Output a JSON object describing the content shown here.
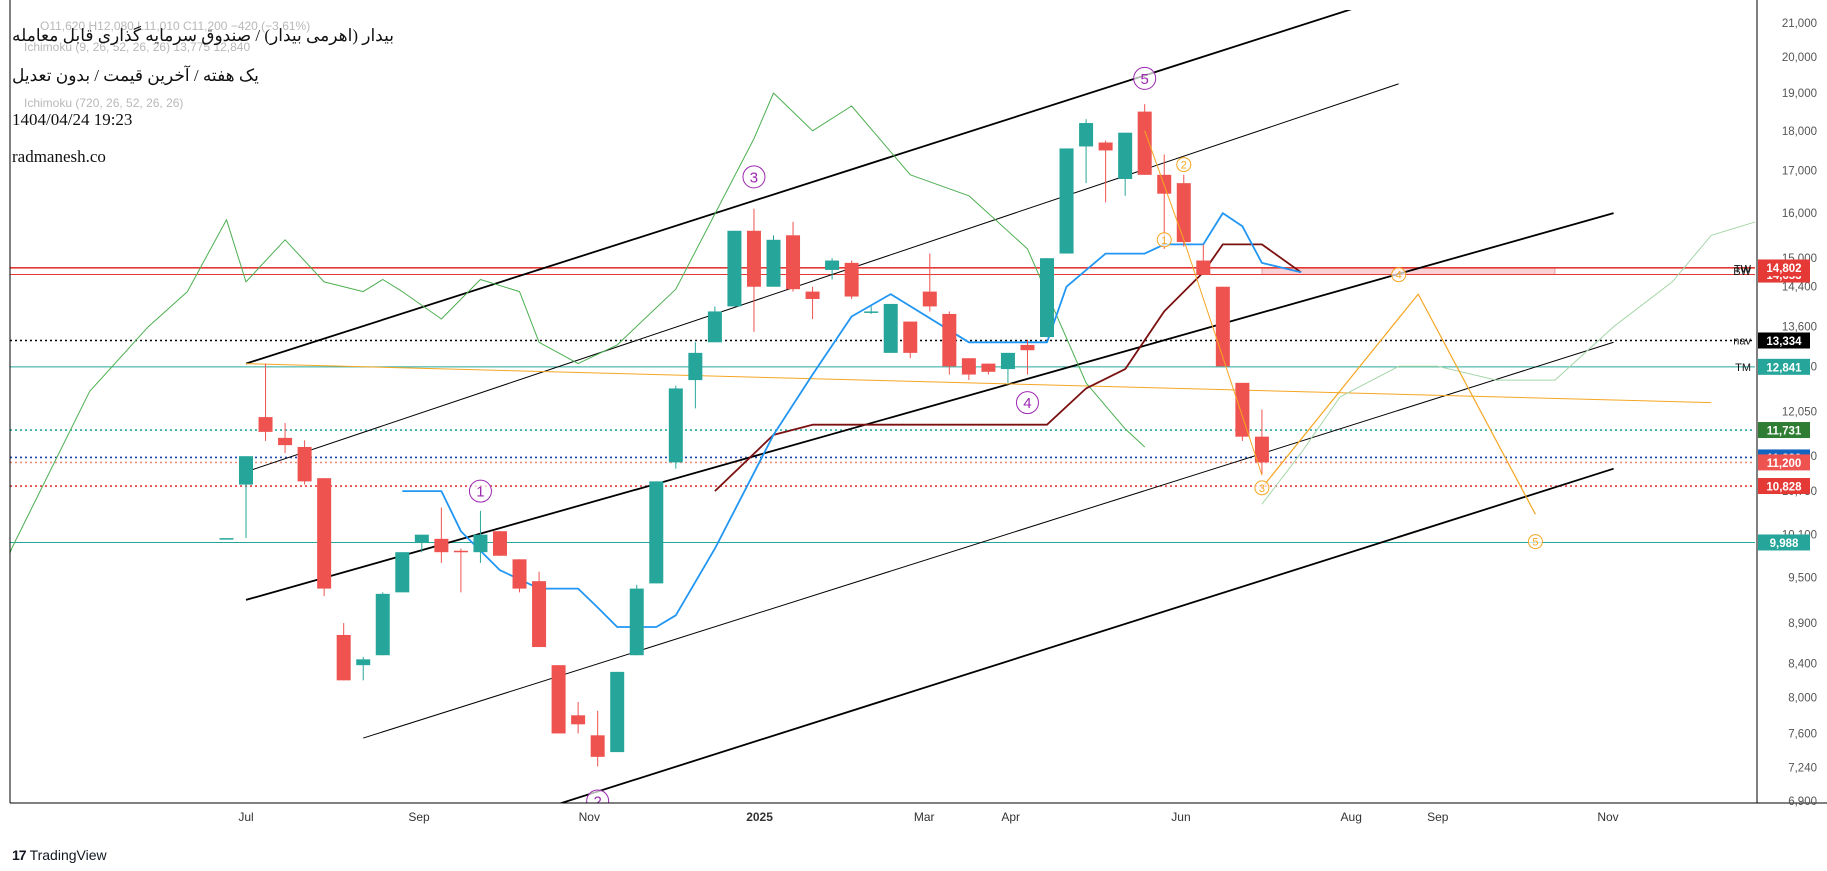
{
  "header": {
    "title": "بیدار (اهرمی بیدار) / صندوق سرمایه گذاری قابل معامله",
    "subtitle": "یک هفته / آخرین قیمت / بدون تعدیل",
    "datetime": "1404/04/24 19:23",
    "website": "radmanesh.co",
    "ghost_line1": "O11,620 H12,080 L11,010 C11,200 −420 (−3.61%)",
    "ghost_line2": "Ichimoku (9, 26, 52, 26, 26) 13,775 12,840",
    "ghost_line3": "Ichimoku (720, 26, 52, 26, 26)"
  },
  "branding": {
    "logo_text": "TradingView",
    "logo_icon": "tradingview-logo-icon"
  },
  "chart_data": {
    "type": "candlestick",
    "timeframe": "1W",
    "colors": {
      "up": "#26a69a",
      "down": "#ef5350",
      "tenkan": "#2196f3",
      "kijun": "#7b1010",
      "lagging": "#4caf50",
      "channel": "#000000",
      "wave": "#f5a623",
      "waveLabel": "#9c27b0"
    },
    "x_axis": {
      "ticks": [
        {
          "label": "Jul",
          "date": "2024-07-01"
        },
        {
          "label": "Sep",
          "date": "2024-09-01"
        },
        {
          "label": "Nov",
          "date": "2024-11-01"
        },
        {
          "label": "2025",
          "date": "2025-01-01"
        },
        {
          "label": "Mar",
          "date": "2025-03-01"
        },
        {
          "label": "Apr",
          "date": "2025-04-01"
        },
        {
          "label": "Jun",
          "date": "2025-06-01"
        },
        {
          "label": "Aug",
          "date": "2025-08-01"
        },
        {
          "label": "Sep",
          "date": "2025-09-01"
        },
        {
          "label": "Nov",
          "date": "2025-11-01"
        }
      ]
    },
    "y_axis": {
      "scale": "log",
      "range": [
        6700,
        21400
      ],
      "ticks": [
        21000,
        20000,
        19000,
        18000,
        17000,
        16000,
        15000,
        14400,
        13600,
        12850,
        12050,
        11300,
        10750,
        10100,
        9500,
        8900,
        8400,
        8000,
        7600,
        7240,
        6900
      ],
      "tick_labels": [
        "21,000",
        "20,000",
        "19,000",
        "18,000",
        "17,000",
        "16,000",
        "15,000",
        "14,400",
        "13,600",
        "12,850",
        "12,050",
        "11,300",
        "10,750",
        "10,100",
        "9,500",
        "8,900",
        "8,400",
        "8,000",
        "7,600",
        "7,240",
        "6,900"
      ]
    },
    "candles": [
      {
        "date": "2024-06-24",
        "o": 10050,
        "h": 10050,
        "l": 10050,
        "c": 10050
      },
      {
        "date": "2024-07-01",
        "o": 10850,
        "h": 11300,
        "l": 10050,
        "c": 11300
      },
      {
        "date": "2024-07-08",
        "o": 11950,
        "h": 12900,
        "l": 11550,
        "c": 11700
      },
      {
        "date": "2024-07-15",
        "o": 11600,
        "h": 11850,
        "l": 11350,
        "c": 11480
      },
      {
        "date": "2024-07-22",
        "o": 11450,
        "h": 11560,
        "l": 10850,
        "c": 10900
      },
      {
        "date": "2024-07-29",
        "o": 10950,
        "h": 10950,
        "l": 9250,
        "c": 9350
      },
      {
        "date": "2024-08-05",
        "o": 8750,
        "h": 8900,
        "l": 8200,
        "c": 8200
      },
      {
        "date": "2024-08-12",
        "o": 8380,
        "h": 8480,
        "l": 8200,
        "c": 8450
      },
      {
        "date": "2024-08-19",
        "o": 8500,
        "h": 9300,
        "l": 8500,
        "c": 9280
      },
      {
        "date": "2024-08-26",
        "o": 9300,
        "h": 9850,
        "l": 9300,
        "c": 9850
      },
      {
        "date": "2024-09-02",
        "o": 9980,
        "h": 10100,
        "l": 9850,
        "c": 10100
      },
      {
        "date": "2024-09-09",
        "o": 10040,
        "h": 10500,
        "l": 9700,
        "c": 9850
      },
      {
        "date": "2024-09-16",
        "o": 9870,
        "h": 9900,
        "l": 9300,
        "c": 9850
      },
      {
        "date": "2024-09-23",
        "o": 9850,
        "h": 10450,
        "l": 9700,
        "c": 10100
      },
      {
        "date": "2024-09-30",
        "o": 10150,
        "h": 10150,
        "l": 9800,
        "c": 9800
      },
      {
        "date": "2024-10-07",
        "o": 9750,
        "h": 9750,
        "l": 9300,
        "c": 9350
      },
      {
        "date": "2024-10-14",
        "o": 9450,
        "h": 9580,
        "l": 8600,
        "c": 8600
      },
      {
        "date": "2024-10-21",
        "o": 8380,
        "h": 8380,
        "l": 7600,
        "c": 7600
      },
      {
        "date": "2024-10-28",
        "o": 7800,
        "h": 7950,
        "l": 7600,
        "c": 7700
      },
      {
        "date": "2024-11-04",
        "o": 7580,
        "h": 7850,
        "l": 7250,
        "c": 7350
      },
      {
        "date": "2024-11-11",
        "o": 7400,
        "h": 8300,
        "l": 7400,
        "c": 8300
      },
      {
        "date": "2024-11-18",
        "o": 8500,
        "h": 9400,
        "l": 8500,
        "c": 9350
      },
      {
        "date": "2024-11-25",
        "o": 9420,
        "h": 10900,
        "l": 9420,
        "c": 10900
      },
      {
        "date": "2024-12-02",
        "o": 11200,
        "h": 12500,
        "l": 11100,
        "c": 12450
      },
      {
        "date": "2024-12-09",
        "o": 12600,
        "h": 13300,
        "l": 12100,
        "c": 13100
      },
      {
        "date": "2024-12-16",
        "o": 13300,
        "h": 14000,
        "l": 13300,
        "c": 13900
      },
      {
        "date": "2024-12-23",
        "o": 14000,
        "h": 15600,
        "l": 14000,
        "c": 15600
      },
      {
        "date": "2024-12-30",
        "o": 15600,
        "h": 16100,
        "l": 13500,
        "c": 14400
      },
      {
        "date": "2025-01-06",
        "o": 14400,
        "h": 15500,
        "l": 14400,
        "c": 15400
      },
      {
        "date": "2025-01-13",
        "o": 15500,
        "h": 15800,
        "l": 14300,
        "c": 14350
      },
      {
        "date": "2025-01-20",
        "o": 14300,
        "h": 14400,
        "l": 13750,
        "c": 14150
      },
      {
        "date": "2025-01-27",
        "o": 14750,
        "h": 15000,
        "l": 14550,
        "c": 14950
      },
      {
        "date": "2025-02-03",
        "o": 14900,
        "h": 14950,
        "l": 14150,
        "c": 14200
      },
      {
        "date": "2025-02-10",
        "o": 13900,
        "h": 14000,
        "l": 13850,
        "c": 13900
      },
      {
        "date": "2025-02-17",
        "o": 13100,
        "h": 14050,
        "l": 13100,
        "c": 14050
      },
      {
        "date": "2025-02-24",
        "o": 13700,
        "h": 13700,
        "l": 13000,
        "c": 13100
      },
      {
        "date": "2025-03-03",
        "o": 14300,
        "h": 15100,
        "l": 13900,
        "c": 14000
      },
      {
        "date": "2025-03-10",
        "o": 13850,
        "h": 13900,
        "l": 12700,
        "c": 12850
      },
      {
        "date": "2025-03-17",
        "o": 13000,
        "h": 13000,
        "l": 12600,
        "c": 12700
      },
      {
        "date": "2025-03-24",
        "o": 12900,
        "h": 12900,
        "l": 12700,
        "c": 12750
      },
      {
        "date": "2025-03-31",
        "o": 12800,
        "h": 13100,
        "l": 12550,
        "c": 13100
      },
      {
        "date": "2025-04-07",
        "o": 13250,
        "h": 13350,
        "l": 12700,
        "c": 13150
      },
      {
        "date": "2025-04-14",
        "o": 13400,
        "h": 15000,
        "l": 13400,
        "c": 15000
      },
      {
        "date": "2025-04-21",
        "o": 15100,
        "h": 17550,
        "l": 15100,
        "c": 17550
      },
      {
        "date": "2025-04-28",
        "o": 17600,
        "h": 18300,
        "l": 16700,
        "c": 18200
      },
      {
        "date": "2025-05-05",
        "o": 17700,
        "h": 17750,
        "l": 16250,
        "c": 17500
      },
      {
        "date": "2025-05-12",
        "o": 16800,
        "h": 17950,
        "l": 16400,
        "c": 17950
      },
      {
        "date": "2025-05-19",
        "o": 18500,
        "h": 18700,
        "l": 16900,
        "c": 16900
      },
      {
        "date": "2025-05-26",
        "o": 16900,
        "h": 17400,
        "l": 15200,
        "c": 16450
      },
      {
        "date": "2025-06-02",
        "o": 16700,
        "h": 16900,
        "l": 15250,
        "c": 15350
      },
      {
        "date": "2025-06-09",
        "o": 14950,
        "h": 15300,
        "l": 14650,
        "c": 14650
      },
      {
        "date": "2025-06-16",
        "o": 14400,
        "h": 14400,
        "l": 12850,
        "c": 12850
      },
      {
        "date": "2025-06-23",
        "o": 12550,
        "h": 12550,
        "l": 11550,
        "c": 11620
      },
      {
        "date": "2025-06-30",
        "o": 11620,
        "h": 12080,
        "l": 11010,
        "c": 11200
      }
    ],
    "tenkan": [
      {
        "date": "2024-08-26",
        "v": 10750
      },
      {
        "date": "2024-09-09",
        "v": 10750
      },
      {
        "date": "2024-09-16",
        "v": 10150
      },
      {
        "date": "2024-09-30",
        "v": 9600
      },
      {
        "date": "2024-10-14",
        "v": 9350
      },
      {
        "date": "2024-10-28",
        "v": 9350
      },
      {
        "date": "2024-11-04",
        "v": 9100
      },
      {
        "date": "2024-11-11",
        "v": 8850
      },
      {
        "date": "2024-11-25",
        "v": 8850
      },
      {
        "date": "2024-12-02",
        "v": 9000
      },
      {
        "date": "2024-12-16",
        "v": 9900
      },
      {
        "date": "2025-01-06",
        "v": 11650
      },
      {
        "date": "2025-01-20",
        "v": 12700
      },
      {
        "date": "2025-02-03",
        "v": 13800
      },
      {
        "date": "2025-02-17",
        "v": 14250
      },
      {
        "date": "2025-03-17",
        "v": 13300
      },
      {
        "date": "2025-03-24",
        "v": 13300
      },
      {
        "date": "2025-04-14",
        "v": 13300
      },
      {
        "date": "2025-04-21",
        "v": 14400
      },
      {
        "date": "2025-05-05",
        "v": 15100
      },
      {
        "date": "2025-05-19",
        "v": 15100
      },
      {
        "date": "2025-05-26",
        "v": 15300
      },
      {
        "date": "2025-06-09",
        "v": 15300
      },
      {
        "date": "2025-06-16",
        "v": 16000
      },
      {
        "date": "2025-06-23",
        "v": 15700
      },
      {
        "date": "2025-06-30",
        "v": 14900
      },
      {
        "date": "2025-07-14",
        "v": 14700
      }
    ],
    "kijun": [
      {
        "date": "2024-12-16",
        "v": 10750
      },
      {
        "date": "2025-01-06",
        "v": 11650
      },
      {
        "date": "2025-01-20",
        "v": 11820
      },
      {
        "date": "2025-02-17",
        "v": 11820
      },
      {
        "date": "2025-04-07",
        "v": 11820
      },
      {
        "date": "2025-04-14",
        "v": 11820
      },
      {
        "date": "2025-04-28",
        "v": 12450
      },
      {
        "date": "2025-05-12",
        "v": 12800
      },
      {
        "date": "2025-05-26",
        "v": 13900
      },
      {
        "date": "2025-06-09",
        "v": 14700
      },
      {
        "date": "2025-06-16",
        "v": 15300
      },
      {
        "date": "2025-06-30",
        "v": 15300
      },
      {
        "date": "2025-07-14",
        "v": 14700
      }
    ],
    "lagging_span": [
      {
        "date": "2024-01-22",
        "v": 9250
      },
      {
        "date": "2024-02-19",
        "v": 7600
      },
      {
        "date": "2024-03-04",
        "v": 7650
      },
      {
        "date": "2024-03-11",
        "v": 7320
      },
      {
        "date": "2024-04-08",
        "v": 9900
      },
      {
        "date": "2024-05-06",
        "v": 12400
      },
      {
        "date": "2024-05-27",
        "v": 13600
      },
      {
        "date": "2024-06-10",
        "v": 14300
      },
      {
        "date": "2024-06-24",
        "v": 15850
      },
      {
        "date": "2024-07-01",
        "v": 14500
      },
      {
        "date": "2024-07-15",
        "v": 15400
      },
      {
        "date": "2024-07-29",
        "v": 14500
      },
      {
        "date": "2024-08-12",
        "v": 14300
      },
      {
        "date": "2024-08-19",
        "v": 14550
      },
      {
        "date": "2024-08-26",
        "v": 14300
      },
      {
        "date": "2024-09-09",
        "v": 13750
      },
      {
        "date": "2024-09-23",
        "v": 14550
      },
      {
        "date": "2024-10-07",
        "v": 14300
      },
      {
        "date": "2024-10-14",
        "v": 13300
      },
      {
        "date": "2024-10-28",
        "v": 12900
      },
      {
        "date": "2024-11-11",
        "v": 13250
      },
      {
        "date": "2024-12-02",
        "v": 14350
      },
      {
        "date": "2024-12-30",
        "v": 17800
      },
      {
        "date": "2025-01-06",
        "v": 19000
      },
      {
        "date": "2025-01-20",
        "v": 18000
      },
      {
        "date": "2025-02-03",
        "v": 18650
      },
      {
        "date": "2025-02-24",
        "v": 16900
      },
      {
        "date": "2025-03-17",
        "v": 16400
      },
      {
        "date": "2025-04-07",
        "v": 15200
      },
      {
        "date": "2025-04-28",
        "v": 12550
      },
      {
        "date": "2025-05-12",
        "v": 11750
      },
      {
        "date": "2025-05-19",
        "v": 11450
      }
    ],
    "cloud_span": [
      {
        "date": "2025-06-30",
        "v": 10550
      },
      {
        "date": "2025-07-14",
        "v": 11350
      },
      {
        "date": "2025-07-28",
        "v": 12300
      },
      {
        "date": "2025-08-18",
        "v": 12850
      },
      {
        "date": "2025-09-01",
        "v": 12850
      },
      {
        "date": "2025-09-22",
        "v": 12600
      },
      {
        "date": "2025-10-13",
        "v": 12600
      },
      {
        "date": "2025-11-03",
        "v": 13600
      },
      {
        "date": "2025-11-24",
        "v": 14500
      },
      {
        "date": "2025-12-08",
        "v": 15500
      },
      {
        "date": "2025-12-29",
        "v": 15900
      },
      {
        "date": "2026-01-12",
        "v": 15700
      }
    ],
    "levels": [
      {
        "name": "TW",
        "value": 14653,
        "price_label": "14,653",
        "color": "#e53935",
        "style": "solid"
      },
      {
        "name": "BW",
        "value": 14788,
        "price_label": "14,788",
        "color": "#e53935",
        "style": "solid"
      },
      {
        "name": "",
        "value": 14802,
        "price_label": "14,802",
        "color": "#e53935",
        "style": "solid"
      },
      {
        "name": "nav",
        "value": 13334,
        "price_label": "13,334",
        "color": "#000000",
        "style": "dotted"
      },
      {
        "name": "TM",
        "value": 12841,
        "price_label": "12,841",
        "color": "#26a69a",
        "style": "solid"
      },
      {
        "name": "",
        "value": 11731,
        "price_label": "11,731",
        "color": "#26a69a",
        "style": "dotted"
      },
      {
        "name": "",
        "value": 11280,
        "price_label": "11,280",
        "color": "#1e40af",
        "style": "dotted"
      },
      {
        "name": "",
        "value": 11200,
        "price_label": "11,200",
        "color": "#f28b82",
        "style": "dotted"
      },
      {
        "name": "",
        "value": 10828,
        "price_label": "10,828",
        "color": "#e53935",
        "style": "dotted"
      },
      {
        "name": "",
        "value": 9988,
        "price_label": "9,988",
        "color": "#26a69a",
        "style": "solid"
      }
    ],
    "channels": [
      {
        "from": {
          "date": "2024-07-01",
          "v": 12900
        },
        "to": {
          "date": "2025-08-04",
          "v": 21500
        },
        "width": 1.8
      },
      {
        "from": {
          "date": "2024-07-01",
          "v": 11050
        },
        "to": {
          "date": "2025-08-18",
          "v": 19250
        },
        "width": 1
      },
      {
        "from": {
          "date": "2024-07-01",
          "v": 9200
        },
        "to": {
          "date": "2025-11-03",
          "v": 16000
        },
        "width": 1.8
      },
      {
        "from": {
          "date": "2024-08-12",
          "v": 7550
        },
        "to": {
          "date": "2025-11-03",
          "v": 13300
        },
        "width": 1
      },
      {
        "from": {
          "date": "2024-10-07",
          "v": 6750
        },
        "to": {
          "date": "2025-11-03",
          "v": 11100
        },
        "width": 1.8
      }
    ],
    "trendline": {
      "from": {
        "date": "2024-07-01",
        "v": 12900
      },
      "to": {
        "date": "2025-12-08",
        "v": 12200
      },
      "color": "#f5a623"
    },
    "projection": [
      {
        "date": "2025-06-30",
        "v": 10800
      },
      {
        "date": "2025-08-25",
        "v": 14250
      },
      {
        "date": "2025-10-06",
        "v": 10400
      }
    ],
    "resistance_zone": {
      "from": "2025-06-30",
      "to": "2025-10-13",
      "low": 14653,
      "high": 14802
    },
    "major_waves": [
      {
        "label": "1",
        "date": "2024-09-23",
        "v": 10750
      },
      {
        "label": "2",
        "date": "2024-11-04",
        "v": 6900
      },
      {
        "label": "3",
        "date": "2024-12-30",
        "v": 16850
      },
      {
        "label": "4",
        "date": "2025-04-07",
        "v": 12200
      },
      {
        "label": "5",
        "date": "2025-05-19",
        "v": 19400
      }
    ],
    "minor_waves": [
      {
        "label": "1",
        "date": "2025-05-26",
        "v": 15400
      },
      {
        "label": "2",
        "date": "2025-06-02",
        "v": 17150
      },
      {
        "label": "3",
        "date": "2025-06-30",
        "v": 10800
      },
      {
        "label": "4",
        "date": "2025-08-18",
        "v": 14650
      },
      {
        "label": "5",
        "date": "2025-10-06",
        "v": 10000
      }
    ]
  }
}
